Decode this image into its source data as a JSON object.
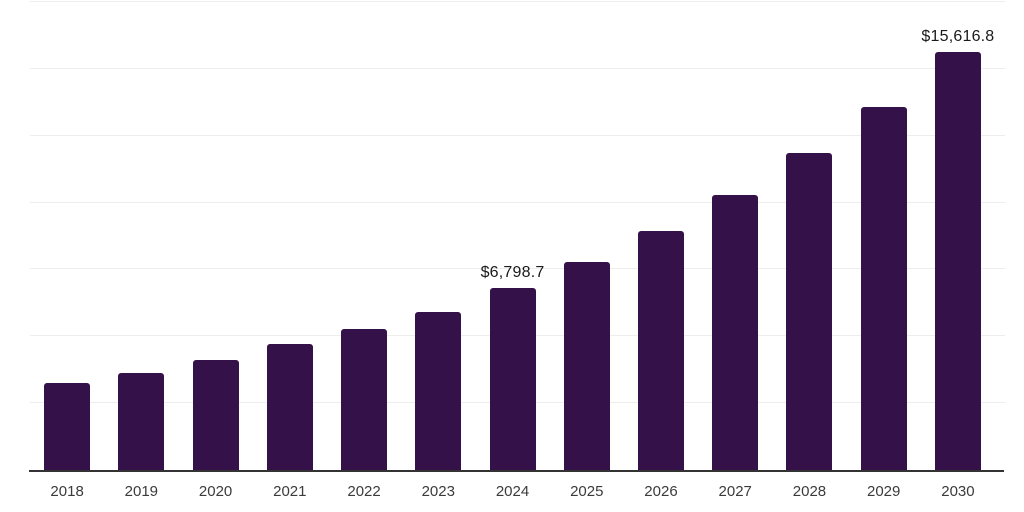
{
  "chart_data": {
    "type": "bar",
    "title": "",
    "xlabel": "",
    "ylabel": "",
    "categories": [
      "2018",
      "2019",
      "2020",
      "2021",
      "2022",
      "2023",
      "2024",
      "2025",
      "2026",
      "2027",
      "2028",
      "2029",
      "2030"
    ],
    "values": [
      3270,
      3640,
      4130,
      4700,
      5290,
      5920,
      6798.7,
      7770,
      8950,
      10280,
      11840,
      13580,
      15616.8
    ],
    "data_labels": {
      "2024": "$6,798.7",
      "2030": "$15,616.8"
    },
    "ylim": [
      0,
      17500
    ],
    "gridline_step": 2500,
    "grid": "horizontal-only",
    "legend": "none",
    "y_tick_labels_visible": false,
    "colors": {
      "bar": "#341249",
      "axis_line": "#333333",
      "gridline": "#ededed",
      "tick_label": "#3b3b3b",
      "data_label": "#1a1a1a",
      "background": "#ffffff"
    }
  }
}
